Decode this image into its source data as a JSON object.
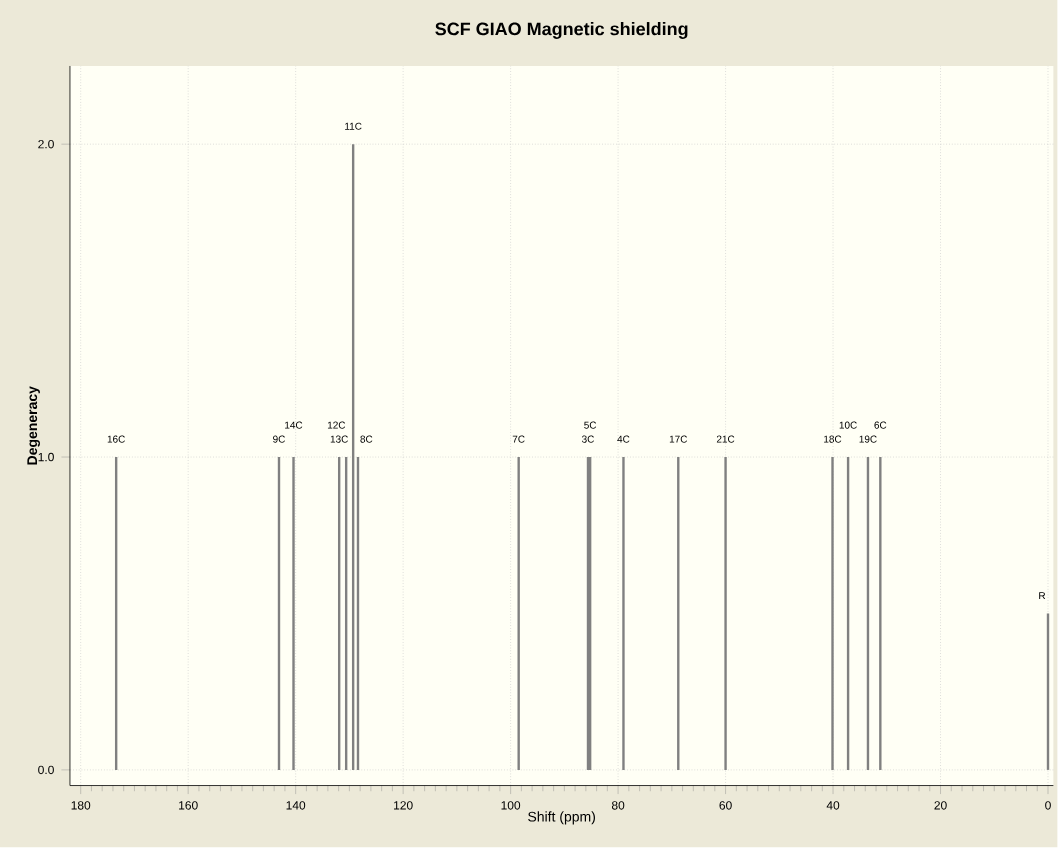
{
  "chart_data": {
    "type": "bar",
    "title": "SCF GIAO Magnetic shielding",
    "xlabel": "Shift (ppm)",
    "ylabel": "Degeneracy",
    "x": [
      173.4,
      143.1,
      140.4,
      131.9,
      130.6,
      129.3,
      128.4,
      98.5,
      85.6,
      85.2,
      79.0,
      68.8,
      60.0,
      40.1,
      37.2,
      33.5,
      31.2,
      0
    ],
    "values": [
      1,
      1,
      1,
      1,
      1,
      2,
      1,
      1,
      1,
      1,
      1,
      1,
      1,
      1,
      1,
      1,
      1,
      0.5
    ],
    "color": "#808080",
    "xlim": [
      182,
      -1
    ],
    "xticks": [
      180,
      160,
      140,
      120,
      100,
      80,
      60,
      40,
      20,
      0
    ],
    "ylim": [
      -0.05,
      2.25
    ],
    "yticks": [
      {
        "value": 0,
        "label": "0.0"
      },
      {
        "value": 1,
        "label": "1.0"
      },
      {
        "value": 2,
        "label": "2.0"
      }
    ],
    "grid": true,
    "annotations": [
      {
        "text": "16C",
        "x": 173.4,
        "y": 1
      },
      {
        "text": "9C",
        "x": 143.1,
        "y": 1
      },
      {
        "text": "14C",
        "x": 140.4,
        "y": 1
      },
      {
        "text": "13C",
        "x": 131.9,
        "y": 1
      },
      {
        "text": "12C",
        "x": 130.6,
        "y": 1
      },
      {
        "text": "11C",
        "x": 129.3,
        "y": 2
      },
      {
        "text": "8C",
        "x": 128.4,
        "y": 1
      },
      {
        "text": "7C",
        "x": 98.5,
        "y": 1
      },
      {
        "text": "3C",
        "x": 85.6,
        "y": 1
      },
      {
        "text": "5C",
        "x": 85.2,
        "y": 1
      },
      {
        "text": "4C",
        "x": 79.0,
        "y": 1
      },
      {
        "text": "17C",
        "x": 68.8,
        "y": 1
      },
      {
        "text": "21C",
        "x": 60.0,
        "y": 1
      },
      {
        "text": "18C",
        "x": 40.1,
        "y": 1
      },
      {
        "text": "10C",
        "x": 37.2,
        "y": 1
      },
      {
        "text": "19C",
        "x": 33.5,
        "y": 1
      },
      {
        "text": "6C",
        "x": 31.2,
        "y": 1
      },
      {
        "text": "R",
        "x": 0,
        "y": 0.5
      }
    ]
  }
}
